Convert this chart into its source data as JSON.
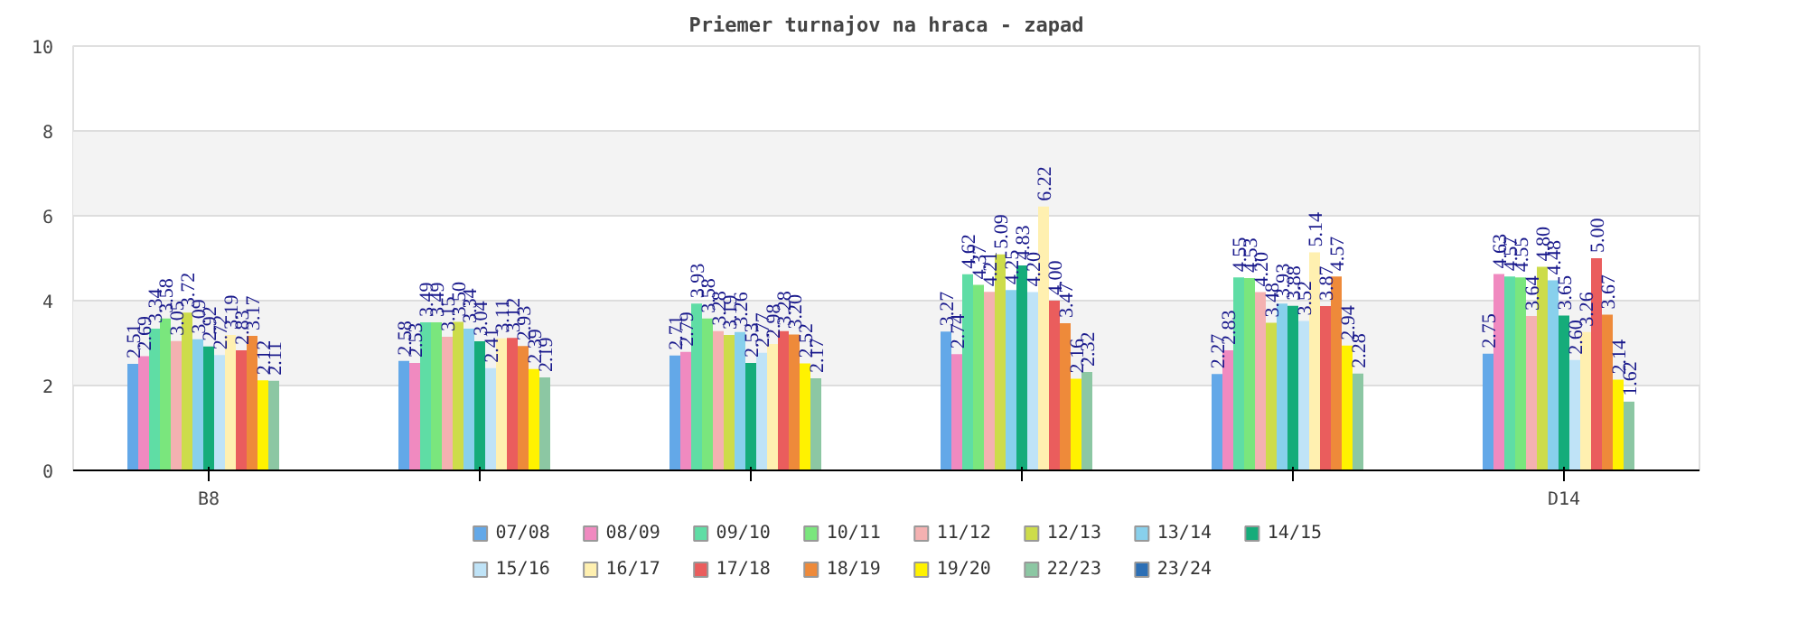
{
  "chart_data": {
    "type": "bar",
    "title": "Priemer turnajov na hraca - zapad",
    "categories": [
      "B8",
      null,
      null,
      null,
      null,
      "D14"
    ],
    "ylim": [
      0,
      10
    ],
    "yticks": [
      0,
      2,
      4,
      6,
      8,
      10
    ],
    "grid": "y",
    "legend": "bottom",
    "series": [
      {
        "name": "07/08",
        "color": "#63a8e8",
        "values": [
          2.51,
          2.58,
          2.71,
          3.27,
          2.27,
          2.75
        ],
        "value_labels": [
          "2.51",
          "2.58",
          "2.71",
          "3.27",
          "2.27",
          "2.75"
        ]
      },
      {
        "name": "08/09",
        "color": "#f08ac0",
        "values": [
          2.69,
          2.53,
          2.79,
          2.74,
          2.83,
          4.63
        ],
        "value_labels": [
          "2.69",
          "2.53",
          "2.79",
          "2.74",
          "2.83",
          "4.63"
        ]
      },
      {
        "name": "09/10",
        "color": "#5fdda5",
        "values": [
          3.34,
          3.49,
          3.93,
          4.62,
          4.55,
          4.57
        ],
        "value_labels": [
          "3.34",
          "3.49",
          "3.93",
          "4.62",
          "4.55",
          "4.57"
        ]
      },
      {
        "name": "10/11",
        "color": "#7ae67d",
        "values": [
          3.58,
          3.49,
          3.58,
          4.37,
          4.53,
          4.55
        ],
        "value_labels": [
          "3.58",
          "3.49",
          "3.58",
          "4.37",
          "4.53",
          "4.55"
        ]
      },
      {
        "name": "11/12",
        "color": "#f4b1b1",
        "values": [
          3.05,
          3.15,
          3.28,
          4.21,
          4.2,
          3.64
        ],
        "value_labels": [
          "3.05",
          "3.15",
          "3.28",
          "4.21",
          "4.20",
          "3.64"
        ]
      },
      {
        "name": "12/13",
        "color": "#cddc4a",
        "values": [
          3.72,
          3.5,
          3.19,
          5.09,
          3.48,
          4.8
        ],
        "value_labels": [
          "3.72",
          "3.50",
          "3.19",
          "5.09",
          "3.48",
          "4.80"
        ]
      },
      {
        "name": "13/14",
        "color": "#88d0ec",
        "values": [
          3.09,
          3.34,
          3.26,
          4.25,
          3.93,
          4.48
        ],
        "value_labels": [
          "3.09",
          "3.34",
          "3.26",
          "4.25",
          "3.93",
          "4.48"
        ]
      },
      {
        "name": "14/15",
        "color": "#15ac7a",
        "values": [
          2.92,
          3.04,
          2.53,
          4.83,
          3.88,
          3.65
        ],
        "value_labels": [
          "2.92",
          "3.04",
          "2.53",
          "4.83",
          "3.88",
          "3.65"
        ]
      },
      {
        "name": "15/16",
        "color": "#bfe3f7",
        "values": [
          2.72,
          2.41,
          2.77,
          4.2,
          3.52,
          2.6
        ],
        "value_labels": [
          "2.72",
          "2.41",
          "2.77",
          "4.20",
          "3.52",
          "2.60"
        ]
      },
      {
        "name": "16/17",
        "color": "#fff0b0",
        "values": [
          3.19,
          3.11,
          2.98,
          6.22,
          5.14,
          3.26
        ],
        "value_labels": [
          "3.19",
          "3.11",
          "2.98",
          "6.22",
          "5.14",
          "3.26"
        ]
      },
      {
        "name": "17/18",
        "color": "#ea5d5d",
        "values": [
          2.83,
          3.12,
          3.28,
          4.0,
          3.87,
          5.0
        ],
        "value_labels": [
          "2.83",
          "3.12",
          "3.28",
          "4.00",
          "3.87",
          "5.00"
        ]
      },
      {
        "name": "18/19",
        "color": "#ee8a3a",
        "values": [
          3.17,
          2.93,
          3.2,
          3.47,
          4.57,
          3.67
        ],
        "value_labels": [
          "3.17",
          "2.93",
          "3.20",
          "3.47",
          "4.57",
          "3.67"
        ]
      },
      {
        "name": "19/20",
        "color": "#fff200",
        "values": [
          2.12,
          2.39,
          2.52,
          2.16,
          2.94,
          2.14
        ],
        "value_labels": [
          "2.12",
          "2.39",
          "2.52",
          "2.16",
          "2.94",
          "2.14"
        ]
      },
      {
        "name": "22/23",
        "color": "#8cc7a3",
        "values": [
          2.11,
          2.19,
          2.17,
          2.32,
          2.28,
          1.62
        ],
        "value_labels": [
          "2.11",
          "2.19",
          "2.17",
          "2.32",
          "2.28",
          "1.62"
        ]
      },
      {
        "name": "23/24",
        "color": "#2c6fb5",
        "values": [
          null,
          null,
          null,
          null,
          null,
          null
        ]
      }
    ]
  }
}
